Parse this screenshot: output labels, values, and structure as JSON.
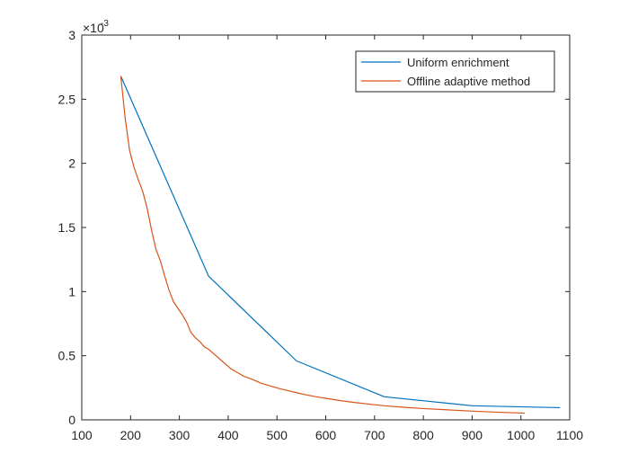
{
  "chart_data": {
    "type": "line",
    "title": "",
    "xlabel": "",
    "ylabel": "",
    "xlim": [
      100,
      1100
    ],
    "ylim": [
      0,
      0.003
    ],
    "x_ticks": [
      100,
      200,
      300,
      400,
      500,
      600,
      700,
      800,
      900,
      1000,
      1100
    ],
    "y_ticks": [
      0,
      0.0005,
      0.001,
      0.0015,
      0.002,
      0.0025,
      0.003
    ],
    "x_tick_labels": [
      "100",
      "200",
      "300",
      "400",
      "500",
      "600",
      "700",
      "800",
      "900",
      "1000",
      "1100"
    ],
    "y_tick_labels": [
      "0",
      "0.5",
      "1",
      "1.5",
      "2",
      "2.5",
      "3"
    ],
    "y_exponent_label": {
      "base": "×10",
      "exponent": "-3"
    },
    "grid": false,
    "legend_location": "top-right",
    "series": [
      {
        "name": "Uniform enrichment",
        "color": "#0072BD",
        "x": [
          180,
          360,
          540,
          720,
          900,
          1080
        ],
        "y": [
          0.00268,
          0.00112,
          0.00046,
          0.00018,
          0.00011,
          9.5e-05
        ]
      },
      {
        "name": "Offline adaptive method",
        "color": "#D95319",
        "x": [
          180,
          189,
          198,
          207,
          216,
          225,
          234,
          243,
          252,
          261,
          270,
          279,
          288,
          297,
          306,
          315,
          324,
          333,
          342,
          351,
          360,
          369,
          378,
          387,
          396,
          405,
          414,
          423,
          432,
          450,
          468,
          486,
          504,
          522,
          540,
          560,
          580,
          600,
          630,
          660,
          690,
          720,
          760,
          800,
          850,
          900,
          950,
          1008
        ],
        "y": [
          0.00268,
          0.00235,
          0.0021,
          0.00197,
          0.00187,
          0.00178,
          0.00165,
          0.00148,
          0.00133,
          0.00124,
          0.00112,
          0.00101,
          0.00092,
          0.00087,
          0.00082,
          0.00076,
          0.00068,
          0.00064,
          0.00061,
          0.00057,
          0.00055,
          0.00052,
          0.00049,
          0.00046,
          0.00043,
          0.0004,
          0.00038,
          0.00036,
          0.00034,
          0.000315,
          0.000285,
          0.000265,
          0.000245,
          0.000228,
          0.000212,
          0.000195,
          0.00018,
          0.000168,
          0.00015,
          0.000135,
          0.000122,
          0.00011,
          9.8e-05,
          8.8e-05,
          7.8e-05,
          6.8e-05,
          6e-05,
          5.2e-05
        ]
      }
    ]
  }
}
